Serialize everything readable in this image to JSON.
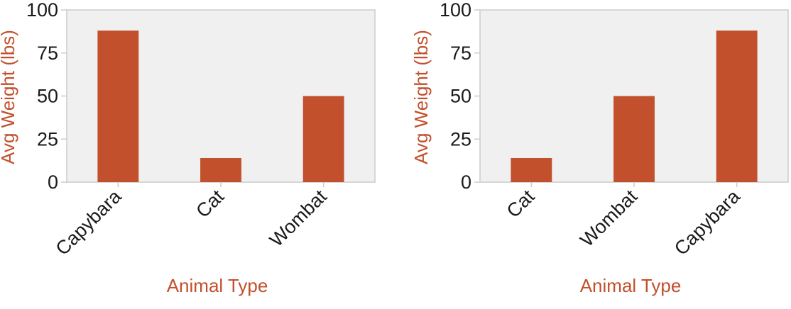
{
  "colors": {
    "bar": "#c2502c",
    "axis_title": "#c2502c",
    "plot_background": "#f1f0f0",
    "plot_border": "#cccccc",
    "tick_text": "#1a1a1a"
  },
  "chart_data": [
    {
      "type": "bar",
      "categories": [
        "Capybara",
        "Cat",
        "Wombat"
      ],
      "values": [
        88,
        14,
        50
      ],
      "xlabel": "Animal Type",
      "ylabel": "Avg Weight (lbs)",
      "ylim": [
        0,
        100
      ],
      "yticks": [
        0,
        25,
        50,
        75,
        100
      ],
      "grid": false
    },
    {
      "type": "bar",
      "categories": [
        "Cat",
        "Wombat",
        "Capybara"
      ],
      "values": [
        14,
        50,
        88
      ],
      "xlabel": "Animal Type",
      "ylabel": "Avg Weight (lbs)",
      "ylim": [
        0,
        100
      ],
      "yticks": [
        0,
        25,
        50,
        75,
        100
      ],
      "grid": false
    }
  ]
}
